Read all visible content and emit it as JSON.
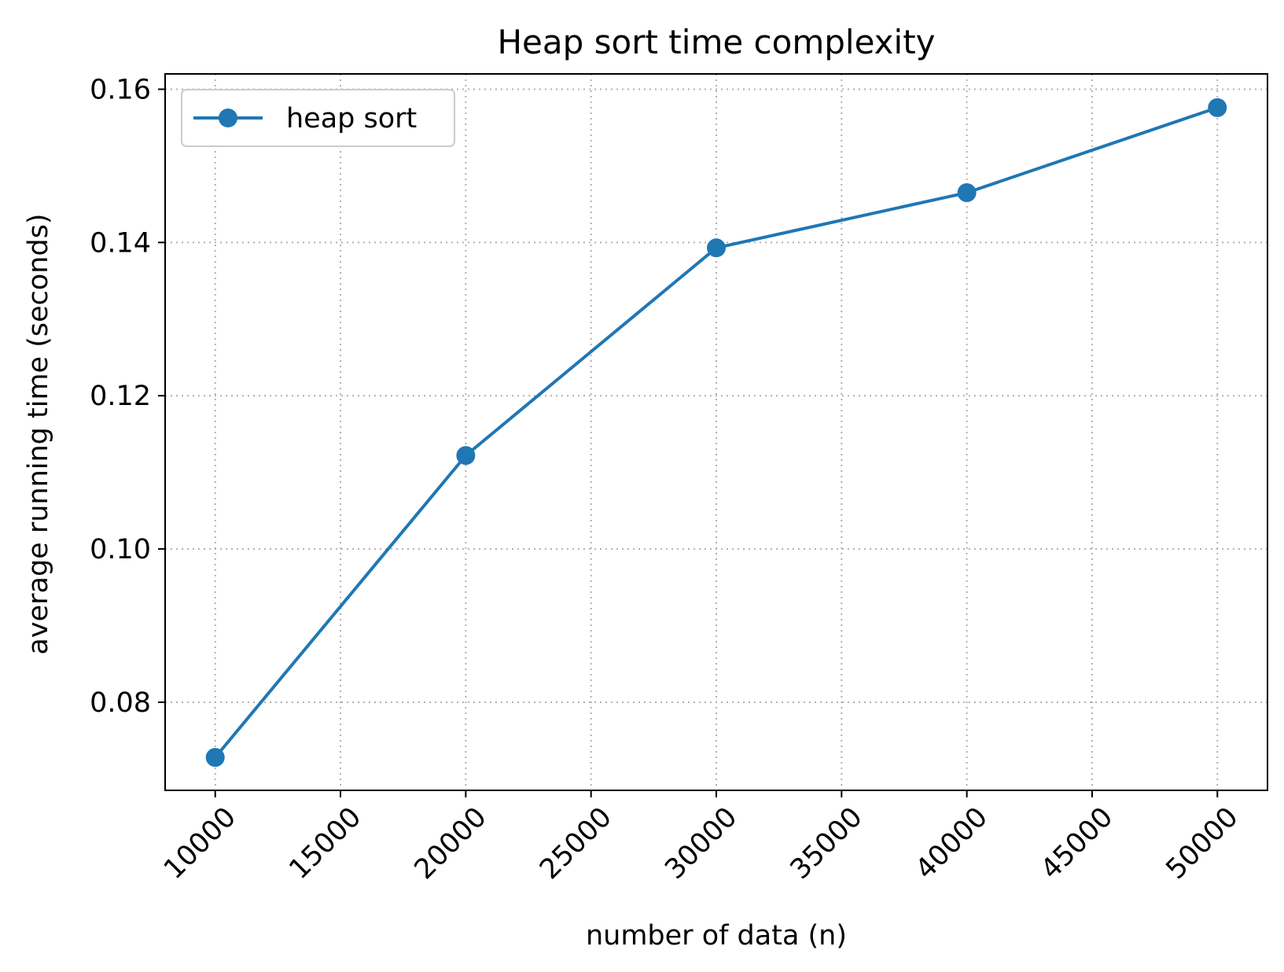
{
  "chart_data": {
    "type": "line",
    "title": "Heap sort time complexity",
    "xlabel": "number of data (n)",
    "ylabel": "average running time (seconds)",
    "x": [
      10000,
      20000,
      30000,
      40000,
      50000
    ],
    "series": [
      {
        "name": "heap sort",
        "values": [
          0.0728,
          0.1122,
          0.1393,
          0.1465,
          0.1576
        ],
        "color": "#1f77b4",
        "marker": "circle"
      }
    ],
    "xlim": [
      8000,
      52000
    ],
    "ylim": [
      0.0685,
      0.162
    ],
    "x_ticks": [
      10000,
      15000,
      20000,
      25000,
      30000,
      35000,
      40000,
      45000,
      50000
    ],
    "x_tick_labels": [
      "10000",
      "15000",
      "20000",
      "25000",
      "30000",
      "35000",
      "40000",
      "45000",
      "50000"
    ],
    "y_ticks": [
      0.08,
      0.1,
      0.12,
      0.14,
      0.16
    ],
    "y_tick_labels": [
      "0.08",
      "0.10",
      "0.12",
      "0.14",
      "0.16"
    ],
    "grid": true,
    "legend_position": "upper-left"
  }
}
